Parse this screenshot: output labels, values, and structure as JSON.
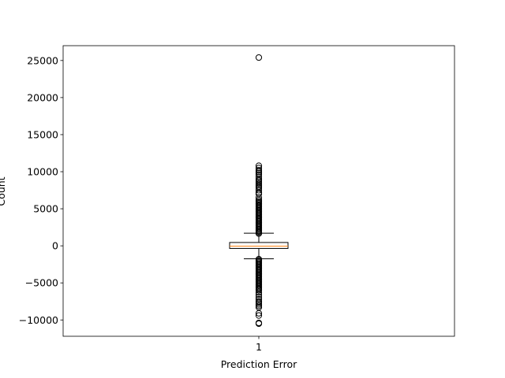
{
  "chart_data": {
    "type": "box",
    "title": "",
    "xlabel": "Prediction Error",
    "ylabel": "Count",
    "categories": [
      "1"
    ],
    "ylim": [
      -12200,
      27000
    ],
    "yticks": [
      -10000,
      -5000,
      0,
      5000,
      10000,
      15000,
      20000,
      25000
    ],
    "grid": false,
    "legend": "none",
    "box": {
      "q1": -350,
      "median": -50,
      "q3": 450,
      "whisker_low": -1750,
      "whisker_high": 1700
    },
    "outliers_high": [
      1650,
      1800,
      1950,
      2100,
      2250,
      2400,
      2550,
      2700,
      2850,
      3000,
      3150,
      3300,
      3450,
      3600,
      3750,
      3900,
      4050,
      4200,
      4350,
      4500,
      4650,
      4800,
      4950,
      5100,
      5250,
      5400,
      5550,
      5700,
      5850,
      6000,
      6200,
      6500,
      7000,
      7200,
      7500,
      7800,
      8000,
      8200,
      8400,
      8600,
      8800,
      9000,
      9300,
      9600,
      9800,
      10000,
      10200,
      10500,
      10800,
      25400
    ],
    "outliers_low": [
      -1800,
      -1950,
      -2100,
      -2250,
      -2400,
      -2550,
      -2700,
      -2850,
      -3000,
      -3150,
      -3300,
      -3450,
      -3600,
      -3750,
      -3900,
      -4050,
      -4200,
      -4350,
      -4500,
      -4650,
      -4800,
      -4950,
      -5100,
      -5250,
      -5400,
      -5550,
      -5700,
      -5850,
      -6000,
      -6300,
      -6600,
      -6900,
      -7200,
      -7500,
      -7700,
      -7900,
      -8100,
      -8300,
      -9100,
      -9400,
      -10400,
      -10500
    ],
    "colors": {
      "box": "#000000",
      "median": "#ff7f0e",
      "outlier_edge": "#000000"
    }
  }
}
